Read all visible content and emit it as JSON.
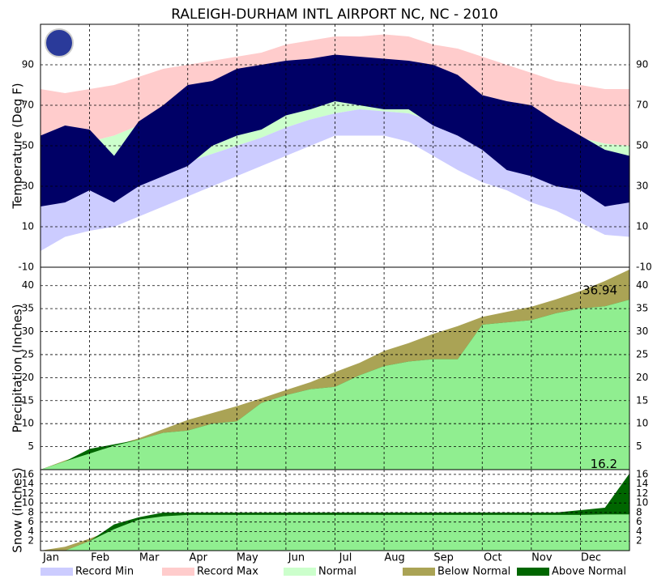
{
  "title": "RALEIGH-DURHAM INTL AIRPORT NC, NC - 2010",
  "chart_data": [
    {
      "type": "band",
      "ylabel": "Temperature (Deg F)",
      "categories": [
        "Jan",
        null,
        "Feb",
        null,
        "Mar",
        null,
        "Apr",
        null,
        "May",
        null,
        "Jun",
        null,
        "Jul",
        null,
        "Aug",
        null,
        "Sep",
        null,
        "Oct",
        null,
        "Nov",
        null,
        "Dec",
        null,
        null
      ],
      "ylim": [
        -10,
        110
      ],
      "yticks": [
        -10,
        10,
        30,
        50,
        70,
        90
      ],
      "grid": true,
      "series": [
        {
          "name": "Record Min",
          "color": "#ccccff",
          "values": [
            -2,
            5,
            8,
            10,
            15,
            20,
            25,
            30,
            35,
            40,
            45,
            50,
            55,
            55,
            55,
            52,
            45,
            38,
            32,
            28,
            22,
            18,
            12,
            6,
            5
          ]
        },
        {
          "name": "Record Max",
          "color": "#ffcccc",
          "values": [
            78,
            76,
            78,
            80,
            84,
            88,
            90,
            92,
            94,
            96,
            100,
            102,
            104,
            104,
            105,
            104,
            100,
            98,
            94,
            90,
            86,
            82,
            80,
            78,
            78
          ]
        },
        {
          "name": "Normal",
          "color": "#ccffcc",
          "low": [
            30,
            29,
            30,
            32,
            35,
            38,
            42,
            46,
            50,
            54,
            59,
            63,
            66,
            68,
            67,
            66,
            62,
            57,
            51,
            46,
            41,
            37,
            33,
            31,
            30
          ],
          "high": [
            50,
            50,
            52,
            55,
            60,
            64,
            70,
            74,
            78,
            82,
            85,
            88,
            89,
            90,
            89,
            88,
            85,
            80,
            75,
            70,
            64,
            59,
            54,
            51,
            50
          ]
        }
      ],
      "observed": {
        "color": "#000066",
        "low": [
          20,
          22,
          28,
          22,
          30,
          35,
          40,
          50,
          55,
          58,
          65,
          68,
          72,
          70,
          68,
          68,
          60,
          55,
          48,
          38,
          35,
          30,
          28,
          20,
          22
        ],
        "high": [
          55,
          60,
          58,
          45,
          62,
          70,
          80,
          82,
          88,
          90,
          92,
          93,
          95,
          94,
          93,
          92,
          90,
          85,
          75,
          72,
          70,
          62,
          55,
          48,
          45
        ]
      }
    },
    {
      "type": "cumulative",
      "ylabel": "Precipitation (Inches)",
      "ylim": [
        0,
        44
      ],
      "yticks": [
        5,
        10,
        15,
        20,
        25,
        30,
        35,
        40
      ],
      "grid": true,
      "series": [
        {
          "name": "Below Normal",
          "color": "#aaa355"
        },
        {
          "name": "Above Normal",
          "color": "#006600"
        }
      ],
      "fill_color": "#90ee90",
      "normal": [
        0,
        2,
        3.5,
        5.2,
        6.8,
        8.8,
        10.8,
        12.3,
        13.8,
        15.5,
        17.3,
        19.0,
        21.2,
        23.2,
        25.8,
        27.5,
        29.5,
        31.2,
        33.2,
        34.3,
        35.4,
        37.0,
        38.8,
        41.0,
        43.5
      ],
      "observed": [
        0,
        1.8,
        4.5,
        5.5,
        6.5,
        8.0,
        8.5,
        10.0,
        10.5,
        14.5,
        16.2,
        17.5,
        18.0,
        20.5,
        22.5,
        23.5,
        24.0,
        24.0,
        31.5,
        32.0,
        32.5,
        34.0,
        35.0,
        35.5,
        36.94
      ]
    },
    {
      "type": "cumulative",
      "ylabel": "Snow (inches)",
      "ylim": [
        0,
        17
      ],
      "yticks": [
        2,
        4,
        6,
        8,
        10,
        12,
        14,
        16
      ],
      "grid": true,
      "series": [
        {
          "name": "Below Normal",
          "color": "#aaa355"
        },
        {
          "name": "Above Normal",
          "color": "#006600"
        }
      ],
      "fill_color": "#90ee90",
      "normal": [
        0,
        0.8,
        2.5,
        4.5,
        6.5,
        7.2,
        7.5,
        7.5,
        7.5,
        7.5,
        7.5,
        7.5,
        7.5,
        7.5,
        7.5,
        7.5,
        7.5,
        7.5,
        7.5,
        7.5,
        7.5,
        7.5,
        7.5,
        7.6,
        7.6
      ],
      "observed": [
        0,
        0,
        2.0,
        5.5,
        7.0,
        8.0,
        8.0,
        8.0,
        8.0,
        8.0,
        8.0,
        8.0,
        8.0,
        8.0,
        8.0,
        8.0,
        8.0,
        8.0,
        8.0,
        8.0,
        8.0,
        8.0,
        8.5,
        9.0,
        16.2
      ]
    }
  ]
}
